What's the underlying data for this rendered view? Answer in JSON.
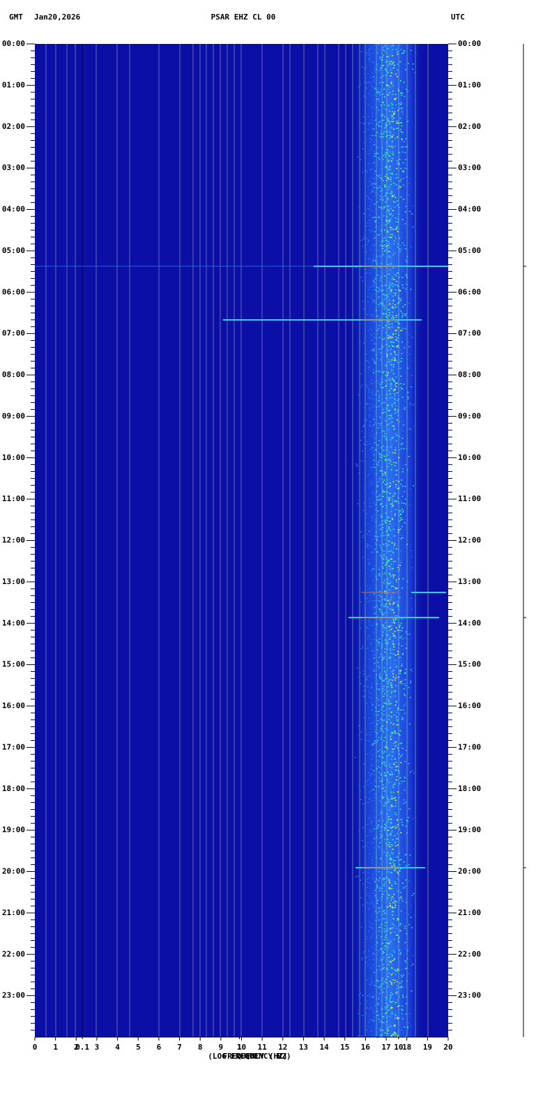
{
  "chart_data": {
    "type": "spectrogram",
    "timezone_left": "GMT",
    "date": "Jan20,2026",
    "title": "PSAR EHZ CL 00",
    "timezone_right": "UTC",
    "xlabel": "(LOG FREQUENCY HZ)",
    "xlabel_linear": "FREQUENCY (HZ)",
    "xlim": [
      0,
      20
    ],
    "xticks": [
      0,
      1,
      2,
      3,
      4,
      5,
      6,
      7,
      8,
      9,
      10,
      11,
      12,
      13,
      14,
      15,
      16,
      17,
      18,
      19,
      20
    ],
    "log_xticks": [
      {
        "value": 2.3,
        "label": "0.1"
      },
      {
        "value": 9.9,
        "label": "1"
      },
      {
        "value": 17.6,
        "label": "10"
      }
    ],
    "ylim": [
      0,
      24
    ],
    "yticks": [
      {
        "value": 0,
        "label": "00:00"
      },
      {
        "value": 1,
        "label": "01:00"
      },
      {
        "value": 2,
        "label": "02:00"
      },
      {
        "value": 3,
        "label": "03:00"
      },
      {
        "value": 4,
        "label": "04:00"
      },
      {
        "value": 5,
        "label": "05:00"
      },
      {
        "value": 6,
        "label": "06:00"
      },
      {
        "value": 7,
        "label": "07:00"
      },
      {
        "value": 8,
        "label": "08:00"
      },
      {
        "value": 9,
        "label": "09:00"
      },
      {
        "value": 10,
        "label": "10:00"
      },
      {
        "value": 11,
        "label": "11:00"
      },
      {
        "value": 12,
        "label": "12:00"
      },
      {
        "value": 13,
        "label": "13:00"
      },
      {
        "value": 14,
        "label": "14:00"
      },
      {
        "value": 15,
        "label": "15:00"
      },
      {
        "value": 16,
        "label": "16:00"
      },
      {
        "value": 17,
        "label": "17:00"
      },
      {
        "value": 18,
        "label": "18:00"
      },
      {
        "value": 19,
        "label": "19:00"
      },
      {
        "value": 20,
        "label": "20:00"
      },
      {
        "value": 21,
        "label": "21:00"
      },
      {
        "value": 22,
        "label": "22:00"
      },
      {
        "value": 23,
        "label": "23:00"
      }
    ]
  }
}
